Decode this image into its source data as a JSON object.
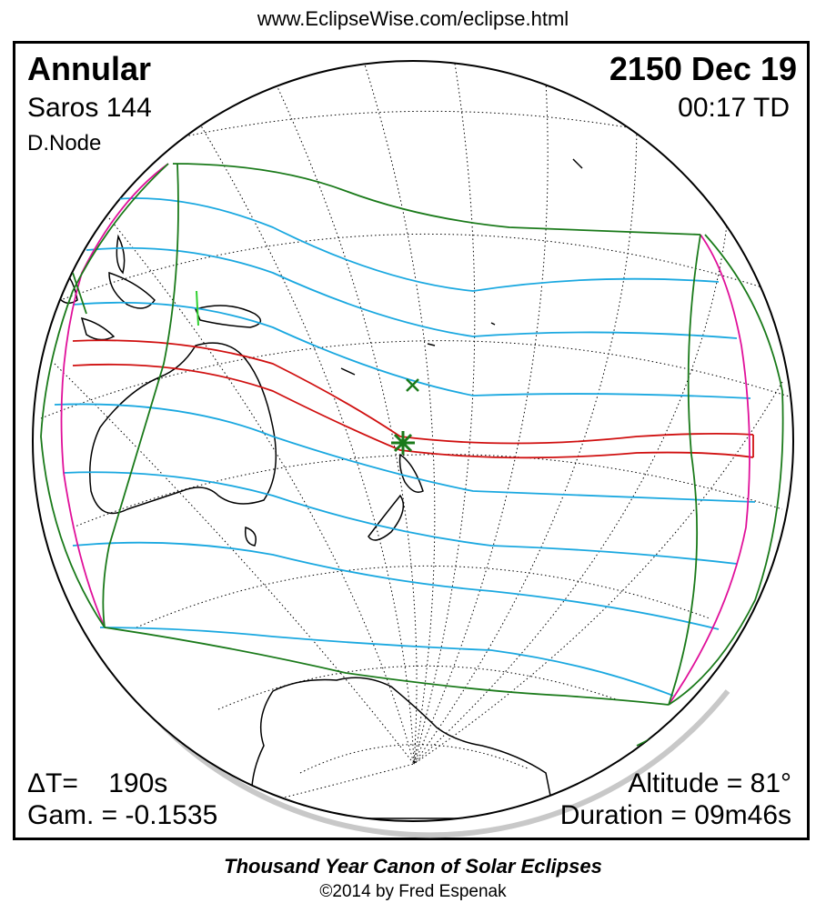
{
  "header_url": "www.EclipseWise.com/eclipse.html",
  "eclipse": {
    "type": "Annular",
    "date": "2150 Dec 19",
    "saros": "Saros 144",
    "time": "00:17 TD",
    "node": "D.Node"
  },
  "stats": {
    "delta_t": "ΔT=    190s",
    "gamma": "Gam. = -0.1535",
    "altitude": "Altitude = 81°",
    "duration": "Duration = 09m46s"
  },
  "footer": {
    "title": "Thousand Year Canon of Solar Eclipses",
    "credit": "©2014 by Fred Espenak"
  },
  "colors": {
    "penumbral_limits": "#1a7a1a",
    "rise_set_curves": "#e0109a",
    "magnitude_lines": "#1aa8e0",
    "central_path": "#d01010",
    "coastlines": "#000000",
    "graticule": "#000000"
  },
  "markers": {
    "greatest_eclipse": "green-star",
    "subsolar_point": "green-x"
  }
}
